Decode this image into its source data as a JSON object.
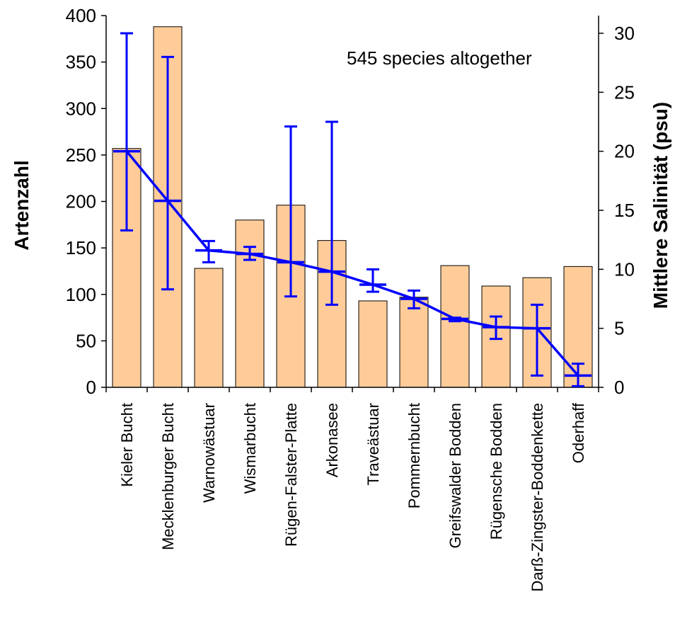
{
  "chart_data": {
    "type": "bar",
    "annotation": "545 species altogether",
    "categories": [
      "Kieler Bucht",
      "Mecklenburger Bucht",
      "Warnowästuar",
      "Wismarbucht",
      "Rügen-Falster-Platte",
      "Arkonasee",
      "Traveästuar",
      "Pommernbucht",
      "Greifswalder Bodden",
      "Rügensche Bodden",
      "Darß-Zingster-Boddenkette",
      "Oderhaff"
    ],
    "ylabel": "Artenzahl",
    "y2label": "Mittlere Salinität (psu)",
    "ylim": [
      0,
      400
    ],
    "y2lim": [
      0,
      31.5
    ],
    "yticks": [
      0,
      50,
      100,
      150,
      200,
      250,
      300,
      350,
      400
    ],
    "y2ticks": [
      0,
      5,
      10,
      15,
      20,
      25,
      30
    ],
    "bar_color": "#FFCC99",
    "line_color": "#0000FF",
    "series": [
      {
        "type": "bar",
        "axis": "left",
        "values": [
          257,
          388,
          128,
          180,
          196,
          158,
          93,
          97,
          131,
          109,
          118,
          130
        ]
      },
      {
        "type": "line",
        "axis": "right",
        "values": [
          20.0,
          15.8,
          11.6,
          11.3,
          10.6,
          9.8,
          8.7,
          7.5,
          5.8,
          5.1,
          5.0,
          1.0
        ],
        "err_low": [
          13.3,
          8.3,
          10.6,
          10.8,
          7.7,
          7.0,
          8.1,
          6.7,
          5.6,
          4.1,
          1.0,
          0.1
        ],
        "err_high": [
          30.0,
          28.0,
          12.4,
          11.9,
          22.1,
          22.5,
          10.0,
          8.2,
          5.9,
          6.0,
          7.0,
          2.0
        ]
      }
    ]
  }
}
